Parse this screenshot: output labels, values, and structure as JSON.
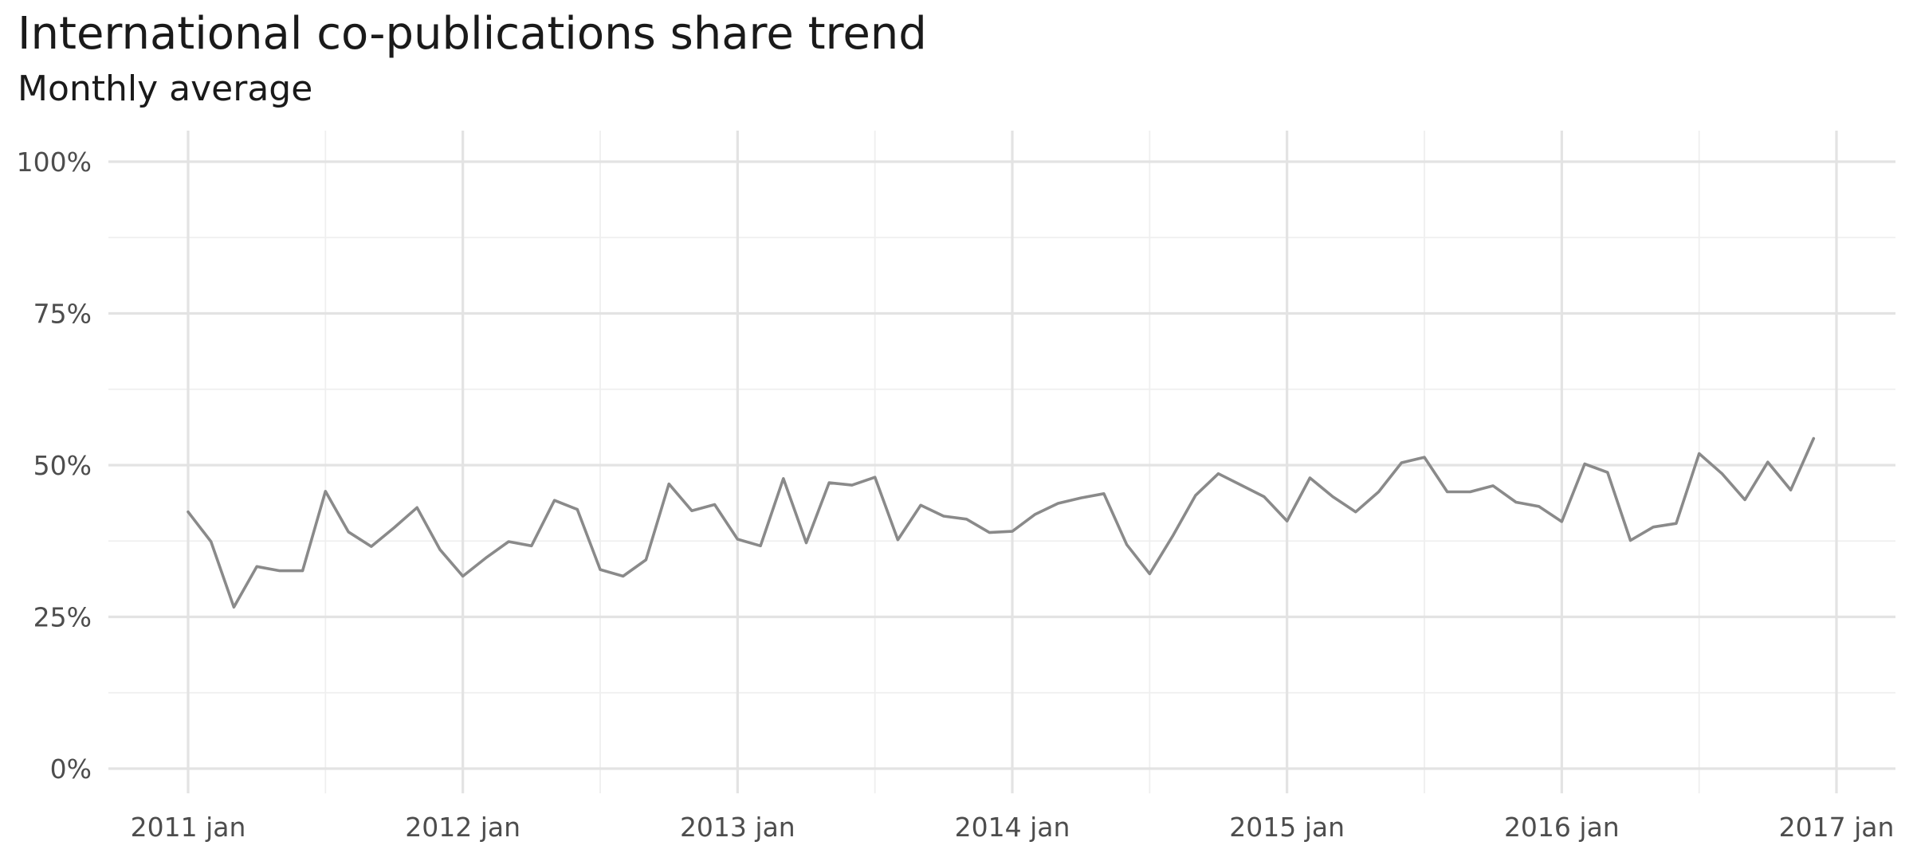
{
  "title": "International co-publications share trend",
  "subtitle": "Monthly average",
  "chart_data": {
    "type": "line",
    "title": "International co-publications share trend",
    "subtitle": "Monthly average",
    "xlabel": "",
    "ylabel": "",
    "x_axis_type": "date",
    "xlim": [
      "2010-09",
      "2017-02"
    ],
    "ylim": [
      0,
      100
    ],
    "y_unit": "%",
    "grid": true,
    "legend": "none",
    "line_color": "#8a8a8a",
    "x_ticks": [
      {
        "date": "2011-01",
        "label": "2011 jan"
      },
      {
        "date": "2012-01",
        "label": "2012 jan"
      },
      {
        "date": "2013-01",
        "label": "2013 jan"
      },
      {
        "date": "2014-01",
        "label": "2014 jan"
      },
      {
        "date": "2015-01",
        "label": "2015 jan"
      },
      {
        "date": "2016-01",
        "label": "2016 jan"
      },
      {
        "date": "2017-01",
        "label": "2017 jan"
      }
    ],
    "x_minor_ticks": [
      "2011-07",
      "2012-07",
      "2013-07",
      "2014-07",
      "2015-07",
      "2016-07"
    ],
    "y_ticks": [
      {
        "value": 0,
        "label": "0%"
      },
      {
        "value": 25,
        "label": "25%"
      },
      {
        "value": 50,
        "label": "50%"
      },
      {
        "value": 75,
        "label": "75%"
      },
      {
        "value": 100,
        "label": "100%"
      }
    ],
    "y_minor_ticks": [
      12.5,
      37.5,
      62.5,
      87.5
    ],
    "series": [
      {
        "x": [
          "2011-01",
          "2011-02",
          "2011-03",
          "2011-04",
          "2011-05",
          "2011-06",
          "2011-07",
          "2011-08",
          "2011-09",
          "2011-10",
          "2011-11",
          "2011-12",
          "2012-01",
          "2012-02",
          "2012-03",
          "2012-04",
          "2012-05",
          "2012-06",
          "2012-07",
          "2012-08",
          "2012-09",
          "2012-10",
          "2012-11",
          "2012-12",
          "2013-01",
          "2013-02",
          "2013-03",
          "2013-04",
          "2013-05",
          "2013-06",
          "2013-07",
          "2013-08",
          "2013-09",
          "2013-10",
          "2013-11",
          "2013-12",
          "2014-01",
          "2014-02",
          "2014-03",
          "2014-04",
          "2014-05",
          "2014-06",
          "2014-07",
          "2014-08",
          "2014-09",
          "2014-10",
          "2014-11",
          "2014-12",
          "2015-01",
          "2015-02",
          "2015-03",
          "2015-04",
          "2015-05",
          "2015-06",
          "2015-07",
          "2015-08",
          "2015-09",
          "2015-10",
          "2015-11",
          "2015-12",
          "2016-01",
          "2016-02",
          "2016-03",
          "2016-04",
          "2016-05",
          "2016-06",
          "2016-07",
          "2016-08",
          "2016-09",
          "2016-10",
          "2016-11",
          "2016-12"
        ],
        "values": [
          42.3,
          37.4,
          26.6,
          33.3,
          32.6,
          32.6,
          45.7,
          39.0,
          36.6,
          39.7,
          43.0,
          36.1,
          31.7,
          34.7,
          37.4,
          36.7,
          44.2,
          42.7,
          32.8,
          31.7,
          34.4,
          46.9,
          42.5,
          43.5,
          37.8,
          36.7,
          47.8,
          37.2,
          47.1,
          46.7,
          48.0,
          37.7,
          43.4,
          41.6,
          41.1,
          38.9,
          39.1,
          41.9,
          43.7,
          44.6,
          45.3,
          36.9,
          32.1,
          38.3,
          45.0,
          48.6,
          46.7,
          44.8,
          40.8,
          47.9,
          44.8,
          42.3,
          45.6,
          50.4,
          51.3,
          45.6,
          45.6,
          46.6,
          43.9,
          43.2,
          40.7,
          50.2,
          48.8,
          37.6,
          39.8,
          40.4,
          51.9,
          48.6,
          44.3,
          50.5,
          45.9,
          54.4
        ]
      }
    ]
  }
}
